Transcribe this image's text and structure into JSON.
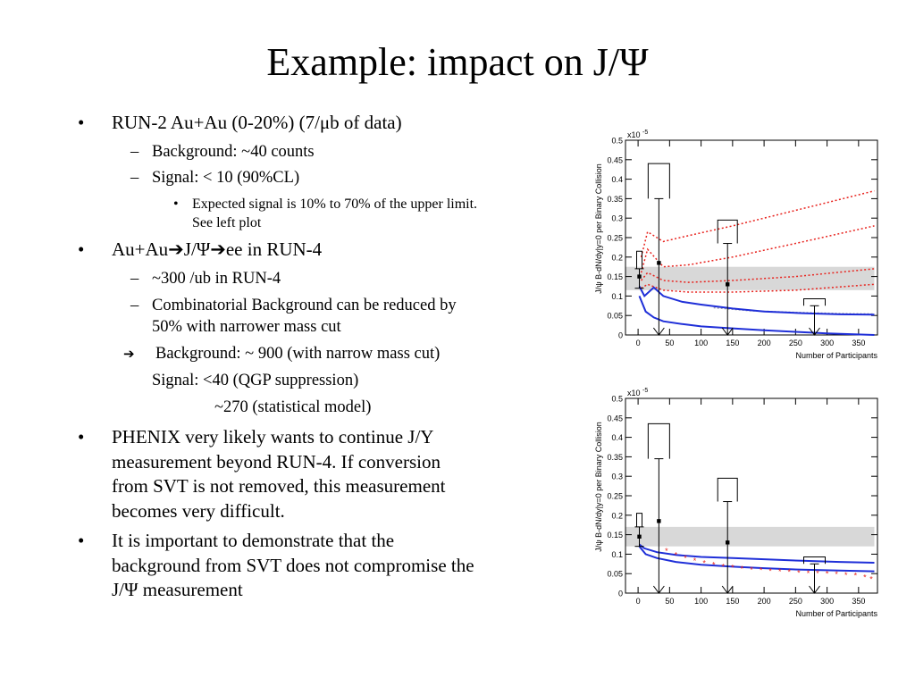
{
  "slide": {
    "title": "Example: impact on J/Ψ",
    "bullets": {
      "b1": "RUN-2 Au+Au (0-20%) (7/μb of data)",
      "b1_sub1": "Background: ~40 counts",
      "b1_sub2": "Signal: < 10 (90%CL)",
      "b1_sub2_note_line1": "Expected signal is 10% to 70% of the upper limit.",
      "b1_sub2_note_line2": "See left plot",
      "b2": "Au+Au➔J/Ψ➔ee in RUN-4",
      "b2_sub1": "~300 /ub in RUN-4",
      "b2_sub2_line1": "Combinatorial Background can be reduced by",
      "b2_sub2_line2": "50% with narrower mass cut",
      "b2_arrow_line": "Background: ~ 900 (with narrow mass cut)",
      "b2_signal_line": "Signal:  <40    (QGP suppression)",
      "b2_signal_line2": "~270 (statistical model)",
      "b3_line1": "PHENIX very likely wants to continue J/Y",
      "b3_line2": "measurement  beyond RUN-4. If conversion",
      "b3_line3": "from SVT is not removed, this measurement",
      "b3_line4": "becomes very difficult.",
      "b4_line1": "It is important to demonstrate that the",
      "b4_line2": "background from SVT does not compromise the",
      "b4_line3": "J/Ψ measurement"
    }
  },
  "chart_data": [
    {
      "type": "scatter",
      "exponent_label": "x10",
      "exponent_power": "-5",
      "ylabel": "J/ψ  B-dN/dy|y=0 per Binary Collision",
      "xlabel": "Number of Participants",
      "xlim": [
        -20,
        380
      ],
      "ylim": [
        0,
        0.5
      ],
      "xticks": [
        0,
        50,
        100,
        150,
        200,
        250,
        300,
        350
      ],
      "yticks": [
        0,
        0.05,
        0.1,
        0.15,
        0.2,
        0.25,
        0.3,
        0.35,
        0.4,
        0.45,
        0.5
      ],
      "band": {
        "y_low": 0.115,
        "y_high": 0.175,
        "x_from": -25,
        "x_to": 375,
        "color": "#d8d8d8"
      },
      "points": [
        {
          "x": 2,
          "y": 0.15,
          "err_low": 0.03,
          "err_high": 0.02,
          "bracket_h": 0.045,
          "bracket_w": 3
        },
        {
          "x": 33,
          "y": 0.185,
          "err_low": 0.185,
          "err_high": 0.165,
          "upper_limit": true,
          "bracket_h": 0.09,
          "bracket_w": 12
        },
        {
          "x": 142,
          "y": 0.13,
          "err_low": 0.13,
          "err_high": 0.105,
          "upper_limit": true,
          "bracket_h": 0.06,
          "bracket_w": 11
        },
        {
          "x": 280,
          "y": 0.0,
          "err_low": 0.0,
          "err_high": 0.075,
          "upper_limit": true,
          "bracket_h": 0.018,
          "bracket_w": 12
        }
      ],
      "series": [
        {
          "style": "red-dotted",
          "x": [
            5,
            15,
            40,
            80,
            150,
            250,
            375
          ],
          "y": [
            0.2,
            0.265,
            0.24,
            0.255,
            0.28,
            0.32,
            0.37
          ]
        },
        {
          "style": "red-dotted",
          "x": [
            5,
            15,
            40,
            80,
            150,
            250,
            375
          ],
          "y": [
            0.16,
            0.22,
            0.175,
            0.18,
            0.2,
            0.235,
            0.28
          ]
        },
        {
          "style": "red-dotted",
          "x": [
            5,
            15,
            40,
            80,
            150,
            250,
            375
          ],
          "y": [
            0.14,
            0.16,
            0.14,
            0.135,
            0.14,
            0.15,
            0.17
          ]
        },
        {
          "style": "red-dotted",
          "x": [
            5,
            15,
            40,
            80,
            150,
            250,
            375
          ],
          "y": [
            0.12,
            0.13,
            0.115,
            0.11,
            0.11,
            0.115,
            0.13
          ]
        },
        {
          "style": "gray-dotted",
          "x": [
            120,
            180,
            250,
            320,
            375
          ],
          "y": [
            0.07,
            0.062,
            0.058,
            0.055,
            0.054
          ]
        },
        {
          "style": "blue-solid",
          "x": [
            2,
            10,
            25,
            40,
            70,
            100,
            150,
            200,
            260,
            320,
            375
          ],
          "y": [
            0.125,
            0.1,
            0.122,
            0.1,
            0.085,
            0.078,
            0.068,
            0.06,
            0.056,
            0.053,
            0.052
          ]
        },
        {
          "style": "blue-solid",
          "x": [
            2,
            12,
            25,
            40,
            70,
            100,
            150,
            200,
            250,
            300,
            375
          ],
          "y": [
            0.1,
            0.06,
            0.045,
            0.035,
            0.028,
            0.022,
            0.017,
            0.012,
            0.008,
            0.004,
            0.0
          ]
        }
      ]
    },
    {
      "type": "scatter",
      "exponent_label": "x10",
      "exponent_power": "-5",
      "ylabel": "J/ψ  B-dN/dy|y=0 per Binary Collision",
      "xlabel": "Number of Participants",
      "xlim": [
        -20,
        380
      ],
      "ylim": [
        0,
        0.5
      ],
      "xticks": [
        0,
        50,
        100,
        150,
        200,
        250,
        300,
        350
      ],
      "yticks": [
        0,
        0.05,
        0.1,
        0.15,
        0.2,
        0.25,
        0.3,
        0.35,
        0.4,
        0.45,
        0.5
      ],
      "band": {
        "y_low": 0.12,
        "y_high": 0.17,
        "x_from": -25,
        "x_to": 375,
        "color": "#d8d8d8"
      },
      "points": [
        {
          "x": 2,
          "y": 0.145,
          "err_low": 0.025,
          "err_high": 0.025,
          "bracket_h": 0.035,
          "bracket_w": 3
        },
        {
          "x": 33,
          "y": 0.185,
          "err_low": 0.185,
          "err_high": 0.16,
          "upper_limit": true,
          "bracket_h": 0.09,
          "bracket_w": 12
        },
        {
          "x": 142,
          "y": 0.13,
          "err_low": 0.13,
          "err_high": 0.105,
          "upper_limit": true,
          "bracket_h": 0.06,
          "bracket_w": 11
        },
        {
          "x": 280,
          "y": 0.0,
          "err_low": 0.0,
          "err_high": 0.075,
          "upper_limit": true,
          "bracket_h": 0.018,
          "bracket_w": 12
        }
      ],
      "series": [
        {
          "style": "blue-solid",
          "x": [
            2,
            10,
            30,
            60,
            100,
            150,
            200,
            260,
            320,
            375
          ],
          "y": [
            0.125,
            0.115,
            0.105,
            0.098,
            0.093,
            0.09,
            0.087,
            0.083,
            0.08,
            0.078
          ]
        },
        {
          "style": "blue-solid",
          "x": [
            2,
            12,
            30,
            60,
            100,
            150,
            200,
            260,
            320,
            375
          ],
          "y": [
            0.12,
            0.1,
            0.09,
            0.08,
            0.073,
            0.068,
            0.064,
            0.06,
            0.058,
            0.056
          ]
        }
      ],
      "markers": {
        "style": "red-star",
        "x": [
          45,
          60,
          75,
          90,
          105,
          120,
          135,
          150,
          165,
          180,
          195,
          210,
          225,
          240,
          255,
          270,
          285,
          300,
          315,
          330,
          345,
          360,
          370
        ],
        "y": [
          0.108,
          0.098,
          0.09,
          0.082,
          0.077,
          0.072,
          0.068,
          0.065,
          0.062,
          0.06,
          0.058,
          0.056,
          0.055,
          0.054,
          0.052,
          0.051,
          0.05,
          0.049,
          0.048,
          0.046,
          0.045,
          0.04,
          0.035
        ]
      }
    }
  ]
}
